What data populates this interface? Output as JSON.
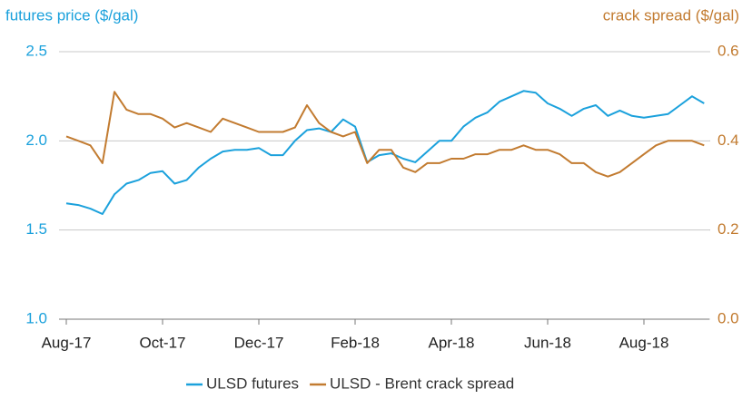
{
  "chart_data": {
    "type": "line",
    "ylabel": "futures price ($/gal)",
    "y2label": "crack spread ($/gal)",
    "categories": [
      "Aug-17",
      null,
      null,
      null,
      null,
      null,
      null,
      null,
      "Oct-17",
      null,
      null,
      null,
      null,
      null,
      null,
      null,
      "Dec-17",
      null,
      null,
      null,
      null,
      null,
      null,
      null,
      "Feb-18",
      null,
      null,
      null,
      null,
      null,
      null,
      null,
      "Apr-18",
      null,
      null,
      null,
      null,
      null,
      null,
      null,
      "Jun-18",
      null,
      null,
      null,
      null,
      null,
      null,
      null,
      "Aug-18",
      null,
      null,
      null,
      null,
      null
    ],
    "series": [
      {
        "name": "ULSD futures",
        "color": "#1ba1dc",
        "values": [
          1.65,
          1.64,
          1.62,
          1.59,
          1.7,
          1.76,
          1.78,
          1.82,
          1.83,
          1.76,
          1.78,
          1.85,
          1.9,
          1.94,
          1.95,
          1.95,
          1.96,
          1.92,
          1.92,
          2.0,
          2.06,
          2.07,
          2.05,
          2.12,
          2.08,
          1.88,
          1.92,
          1.93,
          1.9,
          1.88,
          1.94,
          2.0,
          2.0,
          2.08,
          2.13,
          2.16,
          2.22,
          2.25,
          2.28,
          2.27,
          2.21,
          2.18,
          2.14,
          2.18,
          2.2,
          2.14,
          2.17,
          2.14,
          2.13,
          2.14,
          2.15,
          2.2,
          2.25,
          2.21
        ]
      },
      {
        "name": "ULSD - Brent crack spread",
        "color": "#c27b30",
        "axis": "y2",
        "values": [
          0.41,
          0.4,
          0.39,
          0.35,
          0.51,
          0.47,
          0.46,
          0.46,
          0.45,
          0.43,
          0.44,
          0.43,
          0.42,
          0.45,
          0.44,
          0.43,
          0.42,
          0.42,
          0.42,
          0.43,
          0.48,
          0.44,
          0.42,
          0.41,
          0.42,
          0.35,
          0.38,
          0.38,
          0.34,
          0.33,
          0.35,
          0.35,
          0.36,
          0.36,
          0.37,
          0.37,
          0.38,
          0.38,
          0.39,
          0.38,
          0.38,
          0.37,
          0.35,
          0.35,
          0.33,
          0.32,
          0.33,
          0.35,
          0.37,
          0.39,
          0.4,
          0.4,
          0.4,
          0.39
        ]
      }
    ],
    "ylim": [
      1.0,
      2.5
    ],
    "yticks": [
      {
        "value": 1.0,
        "label": "1.0"
      },
      1.5,
      {
        "value": 2.0,
        "label": "2.0"
      },
      2.5
    ],
    "y2lim": [
      0,
      0.6
    ],
    "y2ticks": [
      {
        "value": 0,
        "label": "0.0"
      },
      0.2,
      0.4,
      0.6
    ],
    "grid": true
  }
}
